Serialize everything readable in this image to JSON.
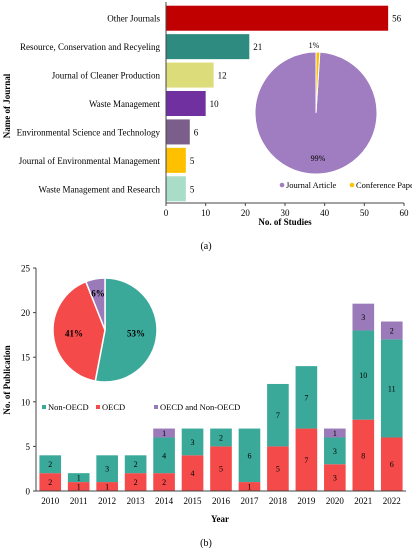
{
  "chart_data": [
    {
      "type": "bar",
      "orientation": "horizontal",
      "categories": [
        "Other Journals",
        "Resource, Conservation and Recyeling",
        "Journal of Cleaner Production",
        "Waste Management",
        "Environmental Science and Technology",
        "Journal of Environmental Management",
        "Waste Management and Research"
      ],
      "values": [
        56,
        21,
        12,
        10,
        6,
        5,
        5
      ],
      "colors": [
        "#c00000",
        "#2e8b80",
        "#dcdc7a",
        "#7030a0",
        "#7a5f8a",
        "#ffc000",
        "#a9dcc9"
      ],
      "xlabel": "No. of Studies",
      "ylabel": "Name of Journal",
      "xlim": [
        0,
        60
      ],
      "xticks": [
        0,
        10,
        20,
        30,
        40,
        50,
        60
      ],
      "grid": false,
      "panel_label": "(a)",
      "inset_pie": {
        "slices": [
          {
            "name": "Journal Article",
            "value": 99,
            "label": "99%",
            "color": "#a07cc0"
          },
          {
            "name": "Conference Paper",
            "value": 1,
            "label": "1%",
            "color": "#ffc000"
          }
        ],
        "legend_placement": "bottom"
      }
    },
    {
      "type": "bar",
      "stacked": true,
      "categories": [
        "2010",
        "2011",
        "2012",
        "2013",
        "2014",
        "2015",
        "2016",
        "2017",
        "2018",
        "2019",
        "2020",
        "2021",
        "2022"
      ],
      "series": [
        {
          "name": "OECD",
          "color": "#f54a4a",
          "values": [
            2,
            1,
            1,
            2,
            2,
            4,
            5,
            1,
            5,
            7,
            3,
            8,
            6
          ]
        },
        {
          "name": "Non-OECD",
          "color": "#3aa99a",
          "values": [
            2,
            1,
            3,
            2,
            4,
            3,
            2,
            6,
            7,
            7,
            3,
            10,
            11
          ]
        },
        {
          "name": "OECD and Non-OECD",
          "color": "#9a7ab8",
          "values": [
            0,
            0,
            0,
            0,
            1,
            0,
            0,
            0,
            0,
            0,
            1,
            3,
            2
          ]
        }
      ],
      "xlabel": "Year",
      "ylabel": "No. of Publication",
      "ylim": [
        0,
        25
      ],
      "yticks": [
        0,
        5,
        10,
        15,
        20,
        25
      ],
      "grid": false,
      "legend_placement": "middle-left",
      "panel_label": "(b)",
      "inset_pie": {
        "slices": [
          {
            "name": "Non-OECD",
            "value": 53,
            "label": "53%",
            "color": "#3aa99a"
          },
          {
            "name": "OECD",
            "value": 41,
            "label": "41%",
            "color": "#f54a4a"
          },
          {
            "name": "OECD and Non-OECD",
            "value": 6,
            "label": "6%",
            "color": "#9a7ab8"
          }
        ]
      }
    }
  ]
}
